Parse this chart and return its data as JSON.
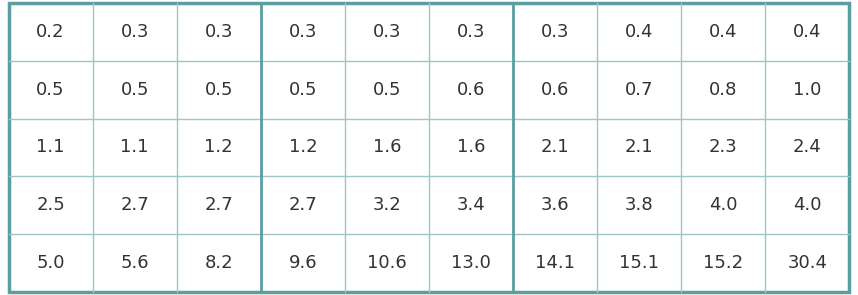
{
  "rows": [
    [
      "0.2",
      "0.3",
      "0.3",
      "0.3",
      "0.3",
      "0.3",
      "0.3",
      "0.4",
      "0.4",
      "0.4"
    ],
    [
      "0.5",
      "0.5",
      "0.5",
      "0.5",
      "0.5",
      "0.6",
      "0.6",
      "0.7",
      "0.8",
      "1.0"
    ],
    [
      "1.1",
      "1.1",
      "1.2",
      "1.2",
      "1.6",
      "1.6",
      "2.1",
      "2.1",
      "2.3",
      "2.4"
    ],
    [
      "2.5",
      "2.7",
      "2.7",
      "2.7",
      "3.2",
      "3.4",
      "3.6",
      "3.8",
      "4.0",
      "4.0"
    ],
    [
      "5.0",
      "5.6",
      "8.2",
      "9.6",
      "10.6",
      "13.0",
      "14.1",
      "15.1",
      "15.2",
      "30.4"
    ]
  ],
  "num_cols": 10,
  "num_rows": 5,
  "outer_border_color": "#5b9ea0",
  "inner_line_color": "#a0c4c5",
  "thick_col_line_indices": [
    3,
    6
  ],
  "background_color": "#ffffff",
  "text_color": "#333333",
  "font_size": 13
}
